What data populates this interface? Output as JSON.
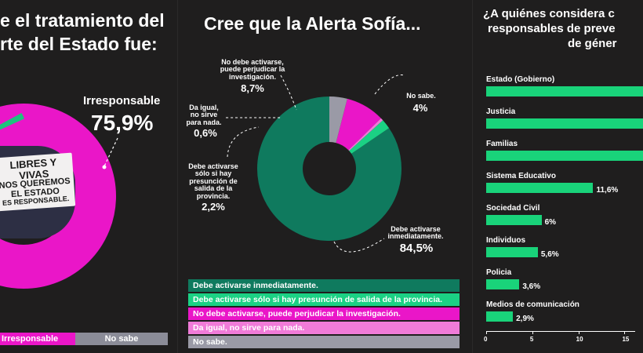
{
  "left": {
    "title_line1": "e el tratamiento del",
    "title_line2": "rte del Estado fue:",
    "label_irresponsable": "Irresponsable",
    "value_irresponsable": "75,9%",
    "sign_lines": [
      "LIBRES Y",
      "VIVAS",
      "NOS QUEREMOS",
      "EL ESTADO",
      "ES RESPONSABLE."
    ],
    "legend_irresponsable": "Irresponsable",
    "legend_nosabe": "No sabe",
    "colors": {
      "magenta": "#ea16c8",
      "green": "#1ec27d",
      "gray": "#8b8c98"
    }
  },
  "middle": {
    "title": "Cree que la Alerta Sofía...",
    "labels": {
      "perjudicar": "No debe activarse, puede perjudicar la investigación.",
      "perjudicar_pct": "8,7%",
      "nosabe": "No sabe.",
      "nosabe_pct": "4%",
      "igual": "Da igual, no sirve para nada.",
      "igual_pct": "0,6%",
      "presuncion": "Debe activarse sólo si hay presunción de salida de la provincia.",
      "presuncion_pct": "2,2%",
      "inmediata": "Debe activarse inmediatamente.",
      "inmediata_pct": "84,5%"
    },
    "legend": [
      {
        "text": "Debe activarse inmediatamente.",
        "color": "#0f7a5e"
      },
      {
        "text": "Debe activarse sólo si hay presunción de salida de la provincia.",
        "color": "#1bd184"
      },
      {
        "text": "No debe activarse, puede perjudicar la investigación.",
        "color": "#ea16c8"
      },
      {
        "text": "Da igual, no sirve para nada.",
        "color": "#f07bd8"
      },
      {
        "text": "No sabe.",
        "color": "#9a9aa6"
      }
    ]
  },
  "right": {
    "title_line1": "¿A quiénes considera c",
    "title_line2": "responsables de preve",
    "title_line3": "de géner",
    "bar_color": "#19d37a"
  },
  "chart_data": [
    {
      "type": "pie",
      "title": "Cree que la Alerta Sofía...",
      "categories": [
        "Debe activarse inmediatamente.",
        "Debe activarse sólo si hay presunción de salida de la provincia.",
        "Da igual, no sirve para nada.",
        "No debe activarse, puede perjudicar la investigación.",
        "No sabe."
      ],
      "values": [
        84.5,
        2.2,
        0.6,
        8.7,
        4.0
      ],
      "colors": [
        "#0f7a5e",
        "#1bd184",
        "#f07bd8",
        "#ea16c8",
        "#9a9aa6"
      ]
    },
    {
      "type": "bar",
      "title": "¿A quiénes considera c responsables de preve de géner",
      "categories": [
        "Estado (Gobierno)",
        "Justicia",
        "Familias",
        "Sistema Educativo",
        "Sociedad Civil",
        "Individuos",
        "Policia",
        "Medios de comunicación"
      ],
      "values": [
        null,
        null,
        null,
        11.6,
        6.0,
        5.6,
        3.6,
        2.9
      ],
      "value_labels": [
        "",
        "",
        "",
        "11,6%",
        "6%",
        "5,6%",
        "3,6%",
        "2,9%"
      ],
      "xticks": [
        "0",
        "5",
        "10",
        "15"
      ],
      "xlim": [
        0,
        17
      ]
    }
  ]
}
